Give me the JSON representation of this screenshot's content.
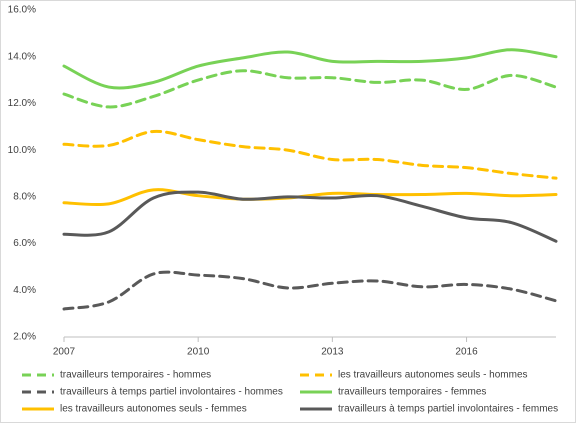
{
  "chart_data": {
    "type": "line",
    "x": [
      2007,
      2008,
      2009,
      2010,
      2011,
      2012,
      2013,
      2014,
      2015,
      2016,
      2017,
      2018
    ],
    "xlim": [
      2007,
      2018
    ],
    "xticks": [
      2007,
      2010,
      2013,
      2016
    ],
    "ylim": [
      2,
      16
    ],
    "yticks": [
      {
        "value": 2,
        "label": "2.0%"
      },
      {
        "value": 4,
        "label": "4.0%"
      },
      {
        "value": 6,
        "label": "6.0%"
      },
      {
        "value": 8,
        "label": "8.0%"
      },
      {
        "value": 10,
        "label": "10.0%"
      },
      {
        "value": 12,
        "label": "12.0%"
      },
      {
        "value": 14,
        "label": "14.0%"
      },
      {
        "value": 16,
        "label": "16.0%"
      }
    ],
    "grid": false,
    "smooth": true,
    "legend": "bottom",
    "series": [
      {
        "name": "travailleurs temporaires - hommes",
        "color": "#78d256",
        "style": "dashed",
        "values": [
          12.4,
          11.85,
          12.3,
          13.0,
          13.4,
          13.1,
          13.1,
          12.9,
          13.0,
          12.6,
          13.2,
          12.7
        ]
      },
      {
        "name": "les travailleurs autonomes seuls - hommes",
        "color": "#ffc000",
        "style": "dashed",
        "values": [
          10.25,
          10.2,
          10.8,
          10.45,
          10.15,
          10.0,
          9.6,
          9.6,
          9.35,
          9.25,
          9.0,
          8.8
        ]
      },
      {
        "name": "travailleurs à temps partiel involontaires - hommes",
        "color": "#595959",
        "style": "dashed",
        "values": [
          3.2,
          3.5,
          4.7,
          4.65,
          4.5,
          4.1,
          4.3,
          4.4,
          4.15,
          4.25,
          4.05,
          3.55
        ]
      },
      {
        "name": "travailleurs temporaires - femmes",
        "color": "#78d256",
        "style": "solid",
        "values": [
          13.6,
          12.7,
          12.9,
          13.6,
          13.95,
          14.2,
          13.8,
          13.8,
          13.8,
          13.95,
          14.3,
          14.0
        ]
      },
      {
        "name": "les travailleurs autonomes seuls - femmes",
        "color": "#ffc000",
        "style": "solid",
        "values": [
          7.75,
          7.7,
          8.3,
          8.05,
          7.9,
          7.95,
          8.15,
          8.1,
          8.1,
          8.15,
          8.05,
          8.1
        ]
      },
      {
        "name": "travailleurs à temps partiel involontaires - femmes",
        "color": "#595959",
        "style": "solid",
        "values": [
          6.4,
          6.5,
          7.95,
          8.2,
          7.9,
          8.0,
          7.95,
          8.05,
          7.6,
          7.1,
          6.9,
          6.1
        ]
      }
    ]
  }
}
